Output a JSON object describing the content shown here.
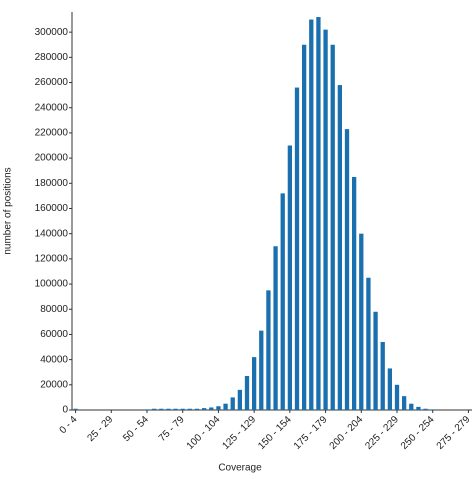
{
  "chart_data": {
    "type": "bar",
    "x_label": "Coverage",
    "y_label": "number of positions",
    "categories": [
      "0 - 4",
      null,
      null,
      null,
      null,
      "25 - 29",
      null,
      null,
      null,
      null,
      "50 - 54",
      null,
      null,
      null,
      null,
      "75 - 79",
      null,
      null,
      null,
      null,
      "100 - 104",
      null,
      null,
      null,
      null,
      "125 - 129",
      null,
      null,
      null,
      null,
      "150 - 154",
      null,
      null,
      null,
      null,
      "175 - 179",
      null,
      null,
      null,
      null,
      "200 - 204",
      null,
      null,
      null,
      null,
      "225 - 229",
      null,
      null,
      null,
      null,
      "250 - 254",
      null,
      null,
      null,
      null,
      "275 - 279"
    ],
    "values": [
      1000,
      0,
      0,
      0,
      0,
      0,
      0,
      0,
      0,
      0,
      500,
      1000,
      1000,
      1000,
      1000,
      1000,
      1000,
      1000,
      1500,
      2000,
      3000,
      5000,
      10000,
      16000,
      27000,
      42000,
      63000,
      95000,
      130000,
      172000,
      210000,
      256000,
      290000,
      310000,
      312000,
      302000,
      290000,
      258000,
      223000,
      185000,
      140000,
      105000,
      78000,
      54000,
      33000,
      20000,
      11000,
      5000,
      2500,
      1000,
      500,
      0,
      0,
      0,
      0,
      0
    ],
    "color": "#1a6faf",
    "ylim": [
      0,
      316000
    ],
    "yticks": [
      0,
      20000,
      40000,
      60000,
      80000,
      100000,
      120000,
      140000,
      160000,
      180000,
      200000,
      220000,
      240000,
      260000,
      280000,
      300000
    ]
  }
}
